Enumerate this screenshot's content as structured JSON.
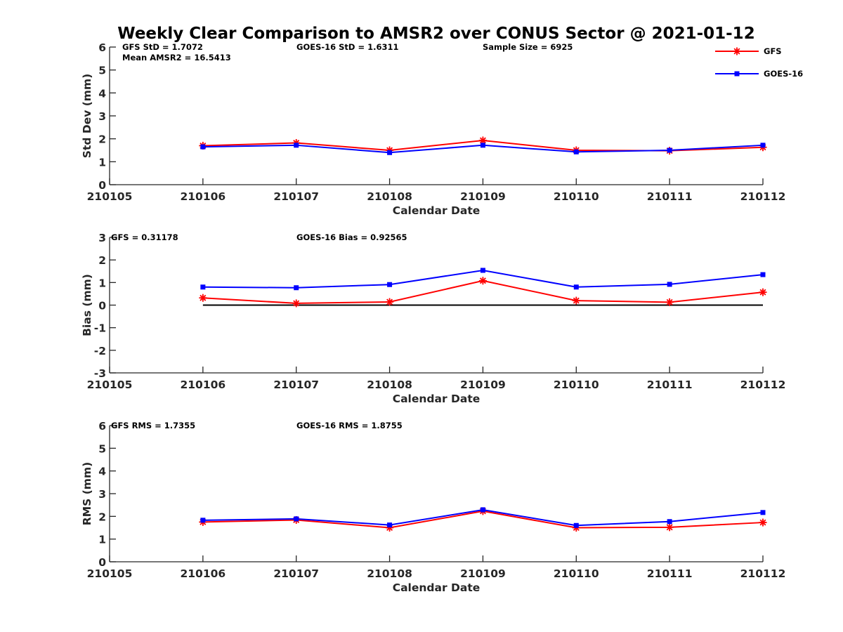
{
  "chart_data": [
    {
      "type": "line",
      "title": "Weekly Clear Comparison to AMSR2 over CONUS Sector @ 2021-01-12",
      "xlabel": "Calendar Date",
      "ylabel": "Std Dev (mm)",
      "x_ticks": [
        "210105",
        "210106",
        "210107",
        "210108",
        "210109",
        "210110",
        "210111",
        "210112"
      ],
      "x": [
        210106,
        210107,
        210108,
        210109,
        210110,
        210111,
        210112
      ],
      "xlim": [
        210105,
        210112
      ],
      "ylim": [
        0,
        6
      ],
      "y_ticks": [
        "0",
        "1",
        "2",
        "3",
        "4",
        "5",
        "6"
      ],
      "zero_line": false,
      "annotations": [
        "GFS StD = 1.7072",
        "GOES-16 StD = 1.6311",
        "Sample Size = 6925",
        "Mean AMSR2 = 16.5413"
      ],
      "legend": {
        "placement": "top-right",
        "entries": [
          "GFS",
          "GOES-16"
        ]
      },
      "series": [
        {
          "name": "GFS",
          "color": "#ff0000",
          "marker": "asterisk",
          "values": [
            1.7,
            1.82,
            1.5,
            1.93,
            1.5,
            1.48,
            1.63
          ]
        },
        {
          "name": "GOES-16",
          "color": "#0000ff",
          "marker": "square",
          "values": [
            1.65,
            1.72,
            1.4,
            1.72,
            1.43,
            1.5,
            1.72
          ]
        }
      ]
    },
    {
      "type": "line",
      "xlabel": "Calendar Date",
      "ylabel": "Bias (mm)",
      "x_ticks": [
        "210105",
        "210106",
        "210107",
        "210108",
        "210109",
        "210110",
        "210111",
        "210112"
      ],
      "x": [
        210106,
        210107,
        210108,
        210109,
        210110,
        210111,
        210112
      ],
      "xlim": [
        210105,
        210112
      ],
      "ylim": [
        -3,
        3
      ],
      "y_ticks": [
        "-3",
        "-2",
        "-1",
        "0",
        "1",
        "2",
        "3"
      ],
      "zero_line": true,
      "annotations": [
        "GFS = 0.31178",
        "GOES-16 Bias  = 0.92565"
      ],
      "series": [
        {
          "name": "GFS",
          "color": "#ff0000",
          "marker": "asterisk",
          "values": [
            0.32,
            0.08,
            0.14,
            1.08,
            0.2,
            0.13,
            0.57
          ]
        },
        {
          "name": "GOES-16",
          "color": "#0000ff",
          "marker": "square",
          "values": [
            0.8,
            0.77,
            0.91,
            1.54,
            0.8,
            0.92,
            1.35
          ]
        }
      ]
    },
    {
      "type": "line",
      "xlabel": "Calendar Date",
      "ylabel": "RMS (mm)",
      "x_ticks": [
        "210105",
        "210106",
        "210107",
        "210108",
        "210109",
        "210110",
        "210111",
        "210112"
      ],
      "x": [
        210106,
        210107,
        210108,
        210109,
        210110,
        210111,
        210112
      ],
      "xlim": [
        210105,
        210112
      ],
      "ylim": [
        0,
        6
      ],
      "y_ticks": [
        "0",
        "1",
        "2",
        "3",
        "4",
        "5",
        "6"
      ],
      "zero_line": false,
      "annotations": [
        "GFS RMS = 1.7355",
        "GOES-16 RMS = 1.8755"
      ],
      "series": [
        {
          "name": "GFS",
          "color": "#ff0000",
          "marker": "asterisk",
          "values": [
            1.75,
            1.84,
            1.5,
            2.23,
            1.5,
            1.52,
            1.73
          ]
        },
        {
          "name": "GOES-16",
          "color": "#0000ff",
          "marker": "square",
          "values": [
            1.83,
            1.89,
            1.62,
            2.29,
            1.6,
            1.77,
            2.17
          ]
        }
      ]
    }
  ]
}
